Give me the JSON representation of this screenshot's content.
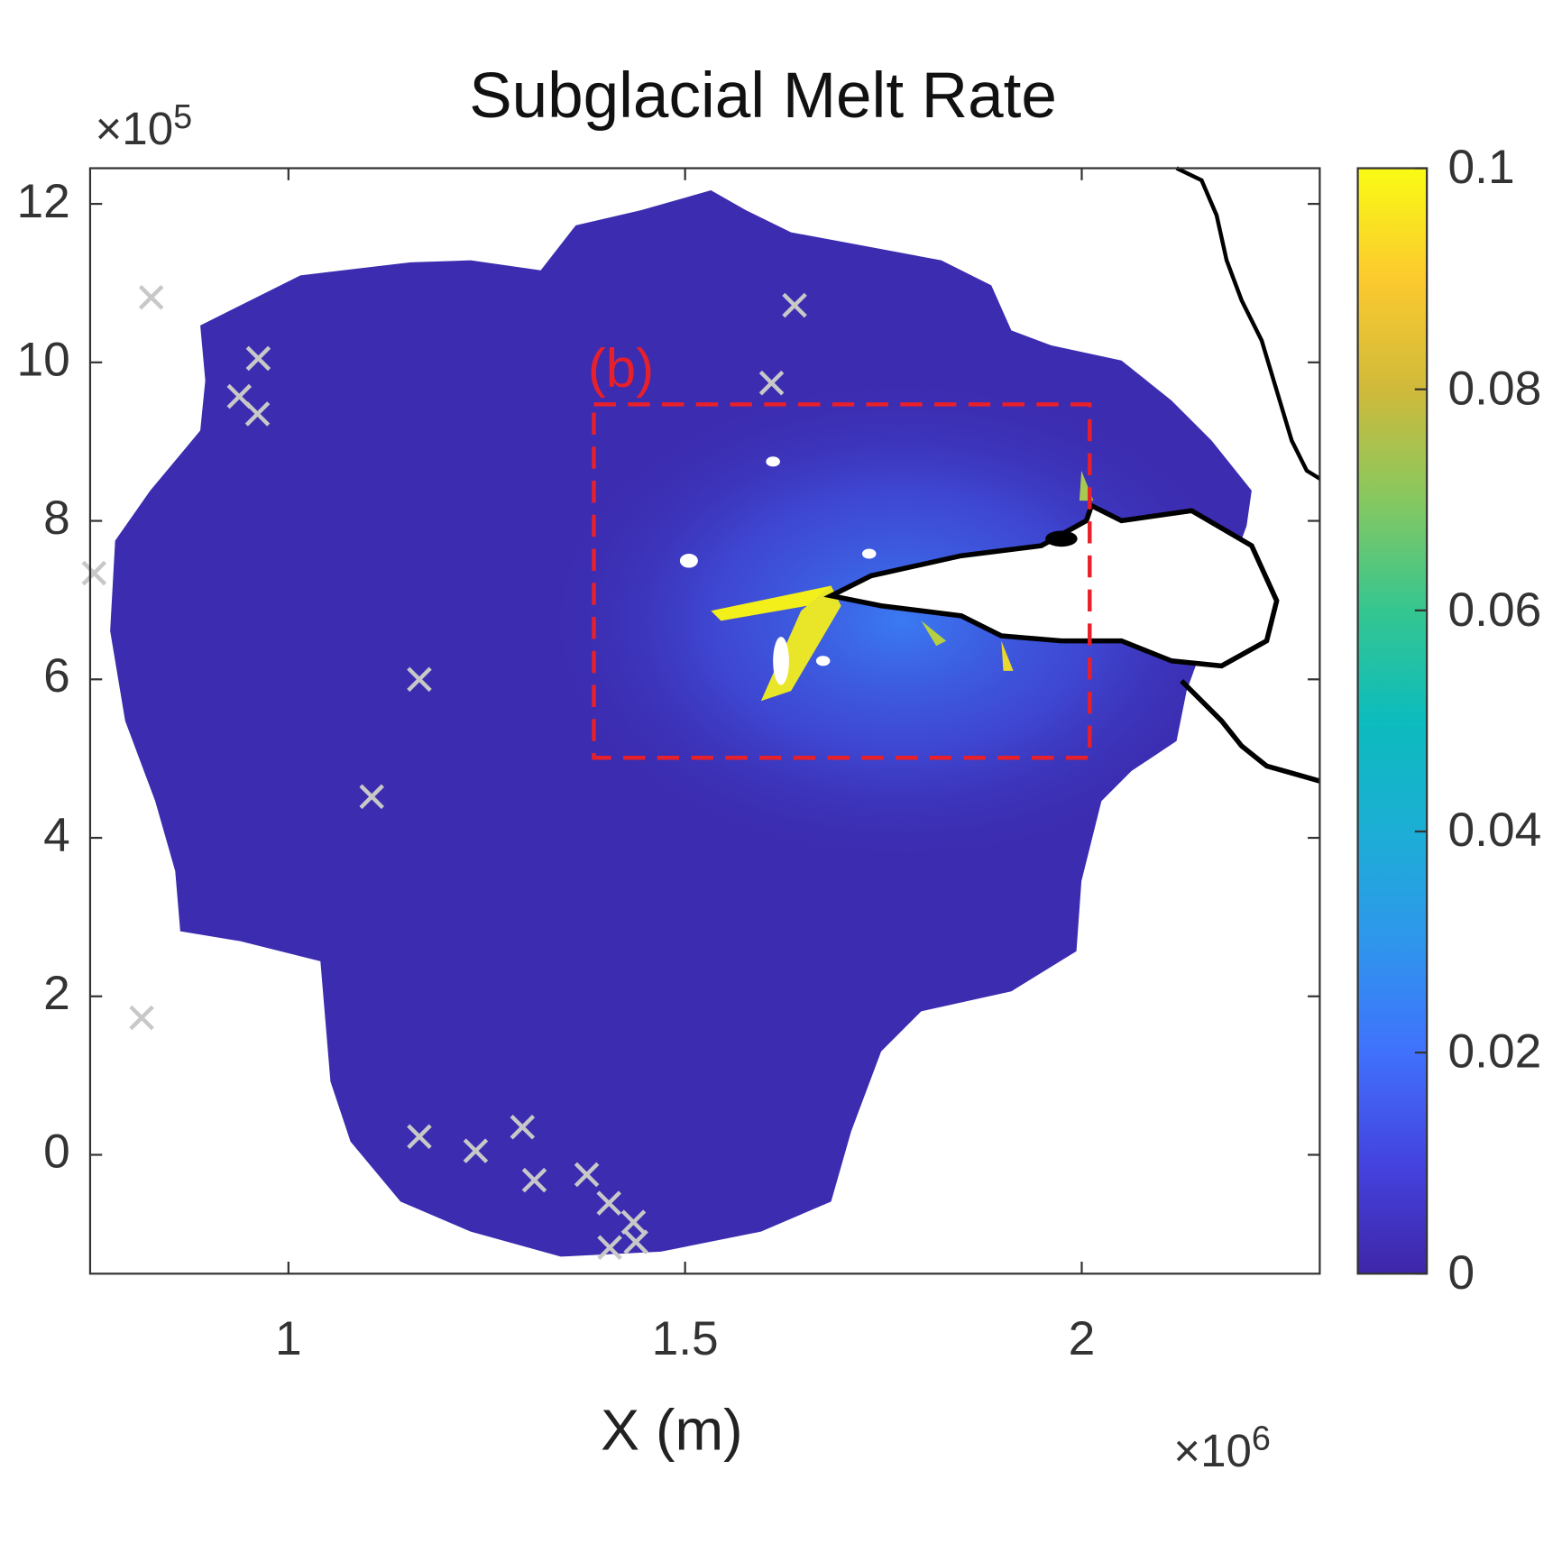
{
  "chart_data": {
    "type": "heatmap",
    "title": "Subglacial Melt Rate",
    "xlabel": "X (m)",
    "ylabel": "",
    "x_multiplier": "×10",
    "x_multiplier_exp": "6",
    "y_multiplier": "×10",
    "y_multiplier_exp": "5",
    "xlim": [
      0.75,
      2.3
    ],
    "ylim": [
      -1.5,
      12.45
    ],
    "x_ticks": [
      "1",
      "1.5",
      "2"
    ],
    "x_tick_values": [
      1,
      1.5,
      2
    ],
    "y_ticks": [
      "0",
      "2",
      "4",
      "6",
      "8",
      "10",
      "12"
    ],
    "y_tick_values": [
      0,
      2,
      4,
      6,
      8,
      10,
      12
    ],
    "colorbar": {
      "range": [
        0,
        0.1
      ],
      "ticks": [
        "0",
        "0.02",
        "0.04",
        "0.06",
        "0.08",
        "0.1"
      ],
      "tick_values": [
        0,
        0.02,
        0.04,
        0.06,
        0.08,
        0.1
      ],
      "colormap": "parula"
    },
    "markers": {
      "symbol": "x",
      "color": "#c8c8c8",
      "points": [
        [
          0.827,
          10.82
        ],
        [
          0.962,
          10.05
        ],
        [
          0.938,
          9.57
        ],
        [
          0.961,
          9.35
        ],
        [
          0.755,
          7.34
        ],
        [
          1.165,
          6.0
        ],
        [
          1.105,
          4.52
        ],
        [
          0.815,
          1.73
        ],
        [
          1.165,
          0.23
        ],
        [
          1.236,
          0.05
        ],
        [
          1.295,
          0.35
        ],
        [
          1.31,
          -0.32
        ],
        [
          1.376,
          -0.25
        ],
        [
          1.404,
          -0.61
        ],
        [
          1.435,
          -0.85
        ],
        [
          1.405,
          -1.17
        ],
        [
          1.438,
          -1.1
        ],
        [
          1.609,
          9.74
        ],
        [
          1.638,
          10.72
        ]
      ]
    },
    "inset_box": {
      "label": "(b)",
      "x": [
        1.385,
        2.01
      ],
      "y": [
        5.01,
        9.47
      ],
      "color": "#e8202a"
    }
  }
}
